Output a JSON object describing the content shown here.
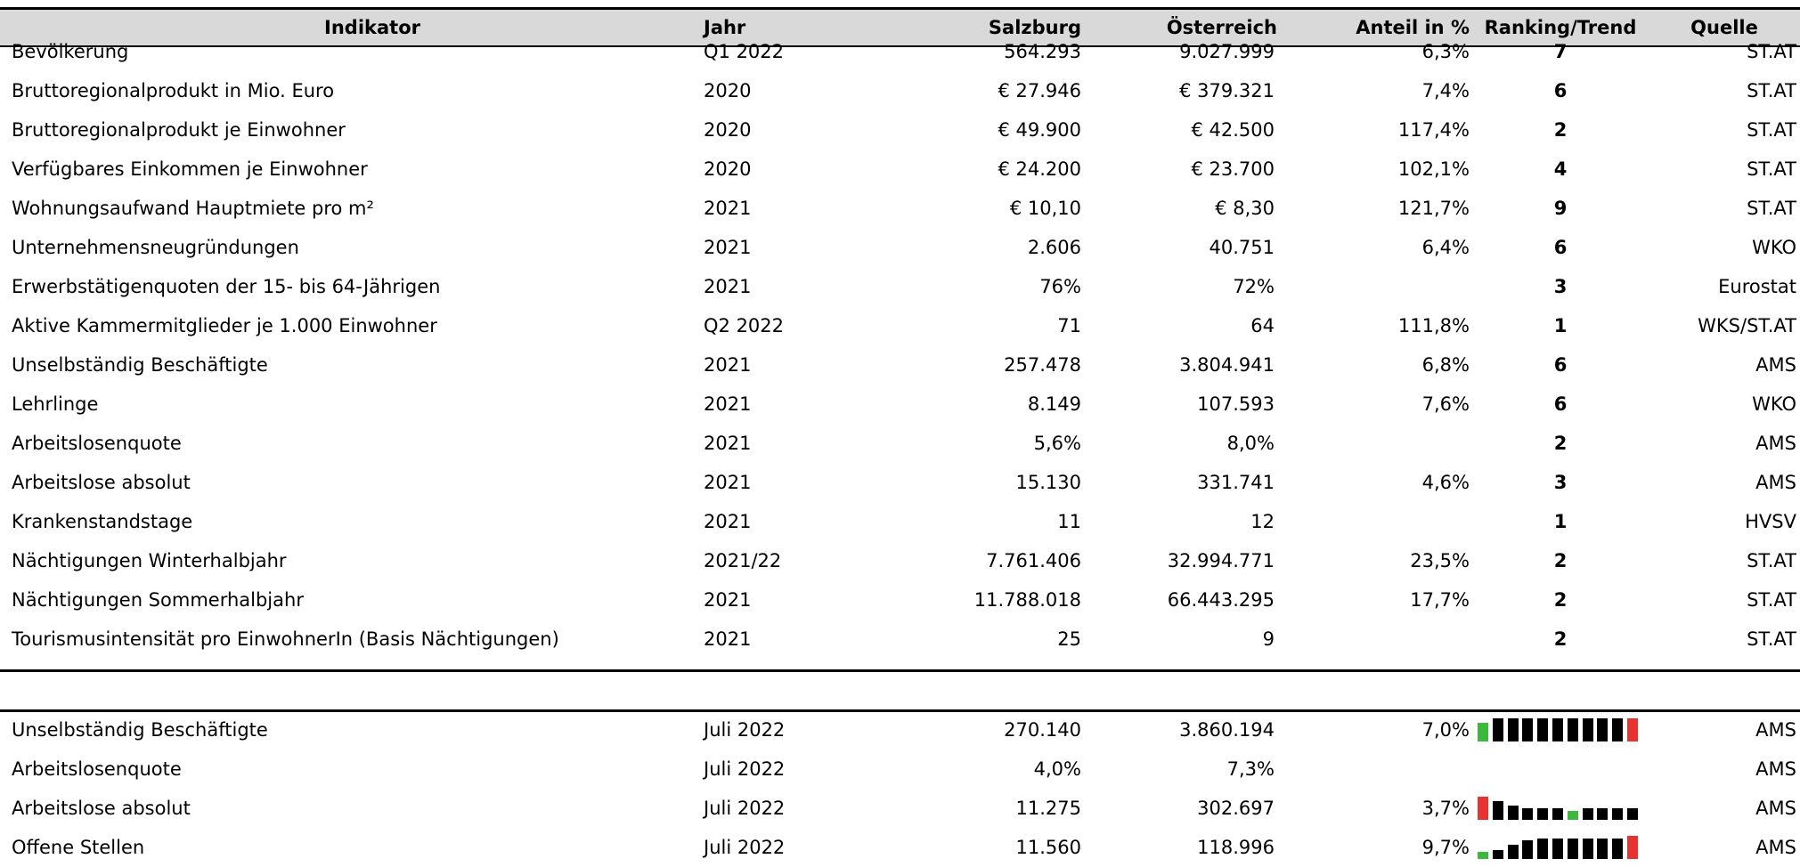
{
  "table": {
    "header": [
      "Indikator",
      "Jahr",
      "Salzburg",
      "Österreich",
      "Anteil in %",
      "Ranking/Trend",
      "Quelle"
    ],
    "rows": [
      [
        "Bevölkerung",
        "Q1 2022",
        "564.293",
        "9.027.999",
        "6,3%",
        "7",
        "ST.AT"
      ],
      [
        "Bruttoregionalprodukt in Mio. Euro",
        "2020",
        "€ 27.946",
        "€ 379.321",
        "7,4%",
        "6",
        "ST.AT"
      ],
      [
        "Bruttoregionalprodukt je Einwohner",
        "2020",
        "€ 49.900",
        "€ 42.500",
        "117,4%",
        "2",
        "ST.AT"
      ],
      [
        "Verfügbares Einkommen je Einwohner",
        "2020",
        "€ 24.200",
        "€ 23.700",
        "102,1%",
        "4",
        "ST.AT"
      ],
      [
        "Wohnungsaufwand Hauptmiete pro m²",
        "2021",
        "€ 10,10",
        "€ 8,30",
        "121,7%",
        "9",
        "ST.AT"
      ],
      [
        "Unternehmensneugründungen",
        "2021",
        "2.606",
        "40.751",
        "6,4%",
        "6",
        "WKO"
      ],
      [
        "Erwerbstätigenquoten der 15- bis 64-Jährigen",
        "2021",
        "76%",
        "72%",
        null,
        "3",
        "Eurostat"
      ],
      [
        "Aktive Kammermitglieder je 1.000 Einwohner",
        "Q2 2022",
        "71",
        "64",
        "111,8%",
        "1",
        "WKS/ST.AT"
      ],
      [
        "Unselbständig Beschäftigte",
        "2021",
        "257.478",
        "3.804.941",
        "6,8%",
        "6",
        "AMS"
      ],
      [
        "Lehrlinge",
        "2021",
        "8.149",
        "107.593",
        "7,6%",
        "6",
        "WKO"
      ],
      [
        "Arbeitslosenquote",
        "2021",
        "5,6%",
        "8,0%",
        null,
        "2",
        "AMS"
      ],
      [
        "Arbeitslose absolut",
        "2021",
        "15.130",
        "331.741",
        "4,6%",
        "3",
        "AMS"
      ],
      [
        "Krankenstandstage",
        "2021",
        "11",
        "12",
        null,
        "1",
        "HVSV"
      ],
      [
        "Nächtigungen Winterhalbjahr",
        "2021/22",
        "7.761.406",
        "32.994.771",
        "23,5%",
        "2",
        "ST.AT"
      ],
      [
        "Nächtigungen Sommerhalbjahr",
        "2021",
        "11.788.018",
        "66.443.295",
        "17,7%",
        "2",
        "ST.AT"
      ],
      [
        "Tourismusintensität pro EinwohnerIn (Basis Nächtigungen)",
        "2021",
        "25",
        "9",
        null,
        "2",
        "ST.AT"
      ]
    ]
  },
  "table2": {
    "rows": [
      [
        "Unselbständig Beschäftigte",
        "Juli 2022",
        "270.140",
        "3.860.194",
        "7,0%",
        null,
        "AMS"
      ],
      [
        "Arbeitslosenquote",
        "Juli 2022",
        "4,0%",
        "7,3%",
        null,
        null,
        "AMS"
      ],
      [
        "Arbeitslose absolut",
        "Juli 2022",
        "11.275",
        "302.697",
        "3,7%",
        null,
        "AMS"
      ],
      [
        "Offene Stellen",
        "Juli 2022",
        "11.560",
        "118.996",
        "9,7%",
        null,
        "AMS"
      ]
    ],
    "trends": [
      {
        "values": [
          8,
          10,
          10,
          10,
          10,
          10,
          10,
          10,
          10,
          10,
          10
        ],
        "colors": [
          "#3cb93c",
          "#000",
          "#000",
          "#000",
          "#000",
          "#000",
          "#000",
          "#000",
          "#000",
          "#000",
          "#e8322d"
        ]
      },
      null,
      {
        "values": [
          10,
          8,
          6,
          5,
          5,
          5,
          4,
          5,
          5,
          5,
          5
        ],
        "colors": [
          "#e8322d",
          "#000",
          "#000",
          "#000",
          "#000",
          "#000",
          "#3cb93c",
          "#000",
          "#000",
          "#000",
          "#000"
        ]
      },
      {
        "values": [
          3,
          4,
          6,
          8,
          9,
          9,
          9,
          9,
          9,
          9,
          10
        ],
        "colors": [
          "#3cb93c",
          "#000",
          "#000",
          "#000",
          "#000",
          "#000",
          "#000",
          "#000",
          "#000",
          "#000",
          "#e8322d"
        ]
      }
    ]
  }
}
